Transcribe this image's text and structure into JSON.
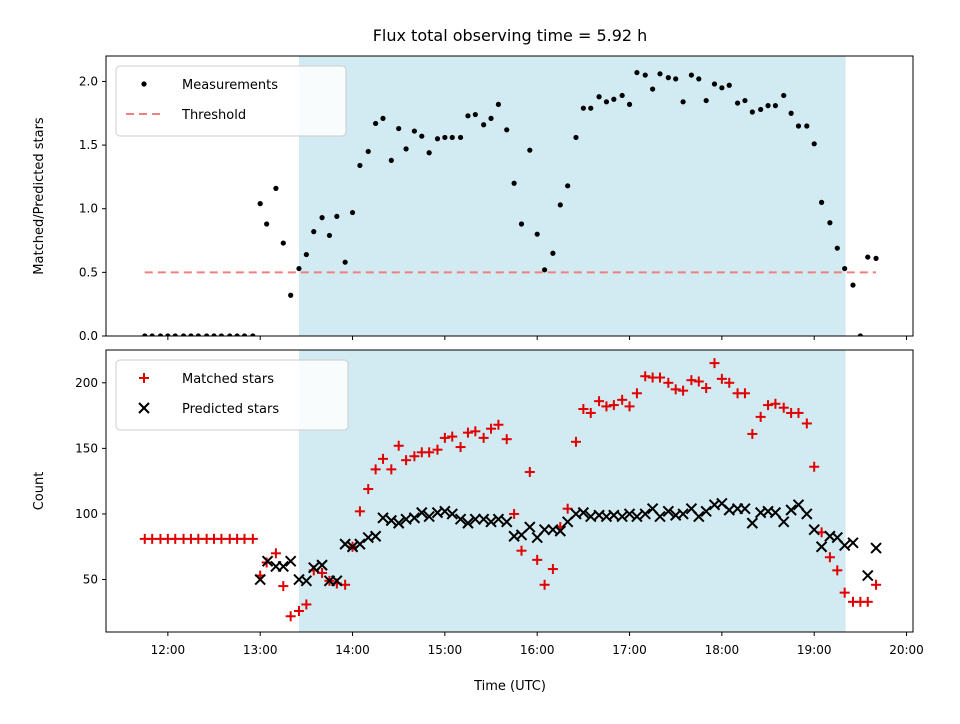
{
  "chart_data": {
    "type": "scatter",
    "title": "Flux total observing time = 5.92 h",
    "xlabel": "Time (UTC)",
    "x_ticks": [
      "12:00",
      "13:00",
      "14:00",
      "15:00",
      "16:00",
      "17:00",
      "18:00",
      "19:00",
      "20:00"
    ],
    "xlim_hours": [
      11.33,
      20.07
    ],
    "observing_window_hours": [
      13.42,
      19.34
    ],
    "colors": {
      "measurements": "#000000",
      "threshold": "#f08080",
      "matched": "#e00000",
      "predicted": "#000000",
      "observing_window": "#add8e6"
    },
    "panels": [
      {
        "ylabel": "Matched/Predicted stars",
        "ylim": [
          0,
          2.2
        ],
        "y_ticks": [
          "0.0",
          "0.5",
          "1.0",
          "1.5",
          "2.0"
        ],
        "legend_location": "top-left",
        "series": [
          {
            "name": "Measurements",
            "marker": "dot",
            "x": [
              11.75,
              11.83,
              11.92,
              12.0,
              12.08,
              12.17,
              12.25,
              12.33,
              12.42,
              12.5,
              12.58,
              12.67,
              12.75,
              12.83,
              12.92,
              13.0,
              13.07,
              13.17,
              13.25,
              13.33,
              13.42,
              13.5,
              13.58,
              13.67,
              13.75,
              13.83,
              13.92,
              14.0,
              14.08,
              14.17,
              14.25,
              14.33,
              14.42,
              14.5,
              14.58,
              14.67,
              14.75,
              14.83,
              14.92,
              15.0,
              15.08,
              15.17,
              15.25,
              15.33,
              15.42,
              15.5,
              15.58,
              15.67,
              15.75,
              15.83,
              15.92,
              16.0,
              16.08,
              16.17,
              16.25,
              16.33,
              16.42,
              16.5,
              16.58,
              16.67,
              16.75,
              16.83,
              16.92,
              17.0,
              17.08,
              17.17,
              17.25,
              17.33,
              17.42,
              17.5,
              17.58,
              17.67,
              17.75,
              17.83,
              17.92,
              18.0,
              18.08,
              18.17,
              18.25,
              18.33,
              18.42,
              18.5,
              18.58,
              18.67,
              18.75,
              18.83,
              18.92,
              19.0,
              19.08,
              19.17,
              19.25,
              19.33,
              19.42,
              19.5,
              19.58,
              19.67
            ],
            "y": [
              0.0,
              0.0,
              0.0,
              0.0,
              0.0,
              0.0,
              0.0,
              0.0,
              0.0,
              0.0,
              0.0,
              0.0,
              0.0,
              0.0,
              0.0,
              1.04,
              0.88,
              1.16,
              0.73,
              0.32,
              0.53,
              0.64,
              0.82,
              0.93,
              0.79,
              0.94,
              0.58,
              0.97,
              1.34,
              1.45,
              1.67,
              1.71,
              1.38,
              1.63,
              1.47,
              1.61,
              1.57,
              1.44,
              1.55,
              1.56,
              1.56,
              1.56,
              1.73,
              1.74,
              1.66,
              1.71,
              1.82,
              1.62,
              1.2,
              0.88,
              1.46,
              0.8,
              0.52,
              0.65,
              1.03,
              1.18,
              1.56,
              1.79,
              1.79,
              1.88,
              1.84,
              1.86,
              1.89,
              1.82,
              2.07,
              2.05,
              1.94,
              2.06,
              2.03,
              2.02,
              1.84,
              2.05,
              2.02,
              1.85,
              1.98,
              1.95,
              1.97,
              1.83,
              1.85,
              1.76,
              1.78,
              1.81,
              1.81,
              1.89,
              1.75,
              1.65,
              1.65,
              1.51,
              1.05,
              0.89,
              0.69,
              0.53,
              0.4,
              0.0,
              0.62,
              0.61
            ]
          },
          {
            "name": "Threshold",
            "marker": "dashed-line",
            "x": [
              11.75,
              19.67
            ],
            "y": [
              0.5,
              0.5
            ]
          }
        ]
      },
      {
        "ylabel": "Count",
        "ylim": [
          10,
          225
        ],
        "y_ticks": [
          "50",
          "100",
          "150",
          "200"
        ],
        "legend_location": "top-left",
        "series": [
          {
            "name": "Matched stars",
            "marker": "plus",
            "x": [
              11.75,
              11.83,
              11.92,
              12.0,
              12.08,
              12.17,
              12.25,
              12.33,
              12.42,
              12.5,
              12.58,
              12.67,
              12.75,
              12.83,
              12.92,
              13.0,
              13.07,
              13.17,
              13.25,
              13.33,
              13.42,
              13.5,
              13.58,
              13.67,
              13.75,
              13.83,
              13.92,
              14.0,
              14.08,
              14.17,
              14.25,
              14.33,
              14.42,
              14.5,
              14.58,
              14.67,
              14.75,
              14.83,
              14.92,
              15.0,
              15.08,
              15.17,
              15.25,
              15.33,
              15.42,
              15.5,
              15.58,
              15.67,
              15.75,
              15.83,
              15.92,
              16.0,
              16.08,
              16.17,
              16.25,
              16.33,
              16.42,
              16.5,
              16.58,
              16.67,
              16.75,
              16.83,
              16.92,
              17.0,
              17.08,
              17.17,
              17.25,
              17.33,
              17.42,
              17.5,
              17.58,
              17.67,
              17.75,
              17.83,
              17.92,
              18.0,
              18.08,
              18.17,
              18.25,
              18.33,
              18.42,
              18.5,
              18.58,
              18.67,
              18.75,
              18.83,
              18.92,
              19.0,
              19.08,
              19.17,
              19.25,
              19.33,
              19.42,
              19.5,
              19.58,
              19.67
            ],
            "y": [
              81,
              81,
              81,
              81,
              81,
              81,
              81,
              81,
              81,
              81,
              81,
              81,
              81,
              81,
              81,
              53,
              63,
              70,
              45,
              22,
              26,
              31,
              57,
              55,
              49,
              47,
              46,
              75,
              102,
              119,
              134,
              142,
              134,
              152,
              141,
              144,
              147,
              147,
              149,
              158,
              159,
              151,
              162,
              163,
              158,
              165,
              168,
              157,
              100,
              72,
              132,
              65,
              46,
              58,
              90,
              104,
              155,
              180,
              177,
              186,
              182,
              183,
              187,
              182,
              192,
              205,
              204,
              204,
              200,
              195,
              194,
              202,
              201,
              196,
              215,
              203,
              200,
              192,
              192,
              161,
              174,
              183,
              184,
              181,
              177,
              177,
              169,
              136,
              86,
              67,
              57,
              40,
              33,
              33,
              33,
              46
            ]
          },
          {
            "name": "Predicted stars",
            "marker": "x",
            "x": [
              13.0,
              13.08,
              13.17,
              13.25,
              13.33,
              13.42,
              13.5,
              13.58,
              13.67,
              13.75,
              13.83,
              13.92,
              14.0,
              14.08,
              14.17,
              14.25,
              14.33,
              14.42,
              14.5,
              14.58,
              14.67,
              14.75,
              14.83,
              14.92,
              15.0,
              15.08,
              15.17,
              15.25,
              15.33,
              15.42,
              15.5,
              15.58,
              15.67,
              15.75,
              15.83,
              15.92,
              16.0,
              16.08,
              16.17,
              16.25,
              16.33,
              16.42,
              16.5,
              16.58,
              16.67,
              16.75,
              16.83,
              16.92,
              17.0,
              17.08,
              17.17,
              17.25,
              17.33,
              17.42,
              17.5,
              17.58,
              17.67,
              17.75,
              17.83,
              17.92,
              18.0,
              18.08,
              18.17,
              18.25,
              18.33,
              18.42,
              18.5,
              18.58,
              18.67,
              18.75,
              18.83,
              18.92,
              19.0,
              19.08,
              19.17,
              19.25,
              19.33,
              19.42,
              19.58,
              19.67
            ],
            "y": [
              50,
              64,
              60,
              60,
              64,
              50,
              49,
              59,
              61,
              49,
              49,
              77,
              75,
              77,
              82,
              83,
              97,
              95,
              93,
              96,
              97,
              101,
              98,
              101,
              102,
              100,
              96,
              93,
              96,
              96,
              94,
              96,
              94,
              83,
              84,
              90,
              82,
              88,
              88,
              87,
              94,
              100,
              101,
              98,
              99,
              98,
              99,
              98,
              100,
              98,
              100,
              104,
              98,
              102,
              99,
              100,
              104,
              98,
              102,
              107,
              108,
              103,
              104,
              104,
              93,
              101,
              102,
              101,
              94,
              103,
              107,
              100,
              88,
              75,
              83,
              82,
              76,
              78,
              53,
              74
            ]
          }
        ]
      }
    ]
  }
}
